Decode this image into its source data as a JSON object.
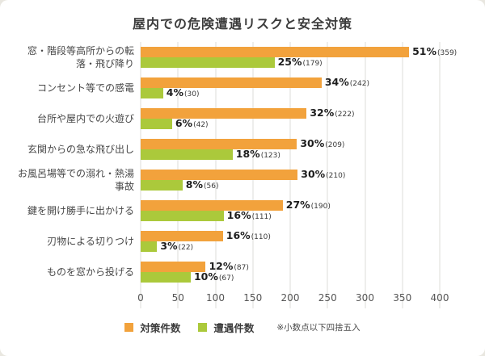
{
  "chart_data": {
    "type": "bar",
    "orientation": "horizontal",
    "title": "屋内での危険遭遇リスクと安全対策",
    "categories": [
      "窓・階段等高所からの転落・飛び降り",
      "コンセント等での感電",
      "台所や屋内での火遊び",
      "玄関からの急な飛び出し",
      "お風呂場等での溺れ・熱湯事故",
      "鍵を開け勝手に出かける",
      "刃物による切りつけ",
      "ものを窓から投げる"
    ],
    "series": [
      {
        "name": "対策件数",
        "color": "#F2A23C",
        "values": [
          359,
          242,
          222,
          209,
          210,
          190,
          110,
          87
        ],
        "percent_labels": [
          "51%",
          "34%",
          "32%",
          "30%",
          "30%",
          "27%",
          "16%",
          "12%"
        ]
      },
      {
        "name": "遭遇件数",
        "color": "#ABC93B",
        "values": [
          179,
          30,
          42,
          123,
          56,
          111,
          22,
          67
        ],
        "percent_labels": [
          "25%",
          "4%",
          "6%",
          "18%",
          "8%",
          "16%",
          "3%",
          "10%"
        ]
      }
    ],
    "xlim": [
      0,
      400
    ],
    "x_ticks": [
      0,
      50,
      100,
      150,
      200,
      250,
      300,
      350,
      400
    ],
    "grid": true,
    "legend_position": "bottom",
    "footnote": "※小数点以下四捨五入"
  }
}
